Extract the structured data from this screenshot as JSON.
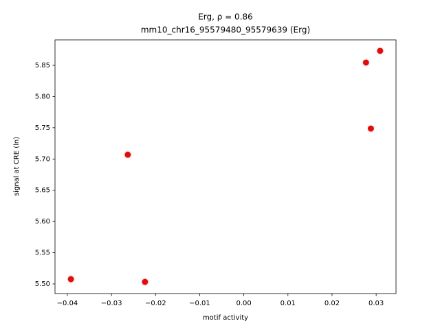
{
  "chart_data": {
    "type": "scatter",
    "title": [
      "Erg, ρ = 0.86",
      "mm10_chr16_95579480_95579639 (Erg)"
    ],
    "x_label": "motif activity",
    "y_label": "signal at CRE (ln)",
    "color": "#ff0000",
    "grid": false,
    "x": [
      -0.0392,
      -0.0224,
      -0.0263,
      0.0277,
      0.0288,
      0.0309
    ],
    "values": [
      5.5077,
      5.5033,
      5.7069,
      5.8544,
      5.7487,
      5.8731
    ],
    "xlim": [
      -0.0428,
      0.0345
    ],
    "ylim": [
      5.4846,
      5.8907
    ],
    "xticks": [
      {
        "value": -0.04,
        "label": "−0.04"
      },
      {
        "value": -0.03,
        "label": "−0.03"
      },
      {
        "value": -0.02,
        "label": "−0.02"
      },
      {
        "value": -0.01,
        "label": "−0.01"
      },
      {
        "value": 0,
        "label": "0.00"
      },
      0.01,
      0.02,
      0.03
    ],
    "yticks": [
      {
        "value": 5.5,
        "label": "5.50"
      },
      5.55,
      {
        "value": 5.6,
        "label": "5.60"
      },
      5.65,
      {
        "value": 5.7,
        "label": "5.70"
      },
      5.75,
      {
        "value": 5.8,
        "label": "5.80"
      },
      5.85
    ]
  }
}
